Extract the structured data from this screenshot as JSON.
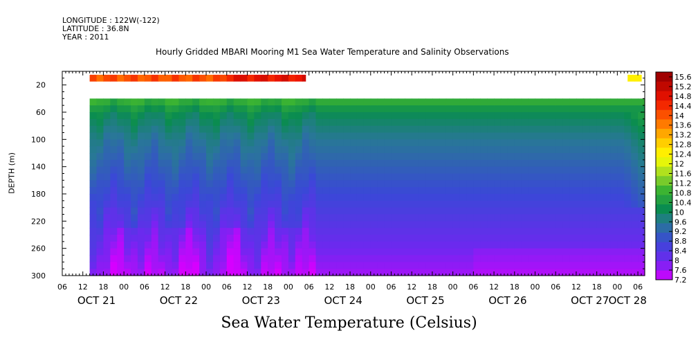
{
  "header": {
    "longitude": "LONGITUDE : 122W(-122)",
    "latitude": "LATITUDE : 36.8N",
    "year": "YEAR : 2011",
    "title": "Hourly Gridded MBARI Mooring M1 Sea Water Temperature and Salinity Observations"
  },
  "chart_data": {
    "type": "heatmap",
    "title": "Hourly Gridded MBARI Mooring M1 Sea Water Temperature and Salinity Observations",
    "subtitle": "Sea Water Temperature (Celsius)",
    "xlabel": "",
    "ylabel": "DEPTH (m)",
    "x_unit": "hours since 2011-10-21 00:00",
    "xlim": [
      -18,
      152
    ],
    "ylim": [
      300,
      0
    ],
    "y_ticks": [
      20,
      60,
      100,
      140,
      180,
      220,
      260,
      300
    ],
    "x_hour_labels": [
      "06",
      "12",
      "18",
      "00",
      "06",
      "12",
      "18",
      "00",
      "06",
      "12",
      "18",
      "00",
      "06",
      "12",
      "18",
      "00",
      "06",
      "12",
      "18",
      "00",
      "06",
      "12",
      "18",
      "00",
      "06",
      "12",
      "18",
      "00",
      "06"
    ],
    "x_hour_positions": [
      -18,
      -12,
      -6,
      0,
      6,
      12,
      18,
      24,
      30,
      36,
      42,
      48,
      54,
      60,
      66,
      72,
      78,
      84,
      90,
      96,
      102,
      108,
      114,
      120,
      126,
      132,
      138,
      144,
      150
    ],
    "x_day_labels": [
      "OCT 21",
      "OCT 22",
      "OCT 23",
      "OCT 24",
      "OCT 25",
      "OCT 26",
      "OCT 27",
      "OCT 28"
    ],
    "x_day_positions": [
      -8,
      16,
      40,
      64,
      88,
      112,
      136,
      147
    ],
    "colorbar": {
      "labels": [
        "15.6",
        "15.2",
        "14.8",
        "14.4",
        "14",
        "13.6",
        "13.2",
        "12.8",
        "12.4",
        "12",
        "11.6",
        "11.2",
        "10.8",
        "10.4",
        "10",
        "9.6",
        "9.2",
        "8.8",
        "8.4",
        "8",
        "7.6",
        "7.2"
      ],
      "min": 7.2,
      "max": 15.8,
      "step": 0.4
    },
    "data_coverage": {
      "surface_depth_range": [
        5,
        15
      ],
      "surface_valid_hours": [
        [
          -10,
          53
        ],
        [
          147,
          151
        ]
      ],
      "subsurface_depth_range": [
        40,
        300
      ],
      "subsurface_valid_hours": [
        -10,
        151
      ]
    },
    "depth_profile_c": [
      {
        "depth": 10,
        "temp": 13.6
      },
      {
        "depth": 40,
        "temp": 11.0
      },
      {
        "depth": 60,
        "temp": 10.2
      },
      {
        "depth": 100,
        "temp": 9.6
      },
      {
        "depth": 140,
        "temp": 9.2
      },
      {
        "depth": 180,
        "temp": 8.8
      },
      {
        "depth": 220,
        "temp": 8.4
      },
      {
        "depth": 260,
        "temp": 8.0
      },
      {
        "depth": 300,
        "temp": 7.6
      }
    ],
    "grid": false,
    "legend": "colorbar-right"
  }
}
